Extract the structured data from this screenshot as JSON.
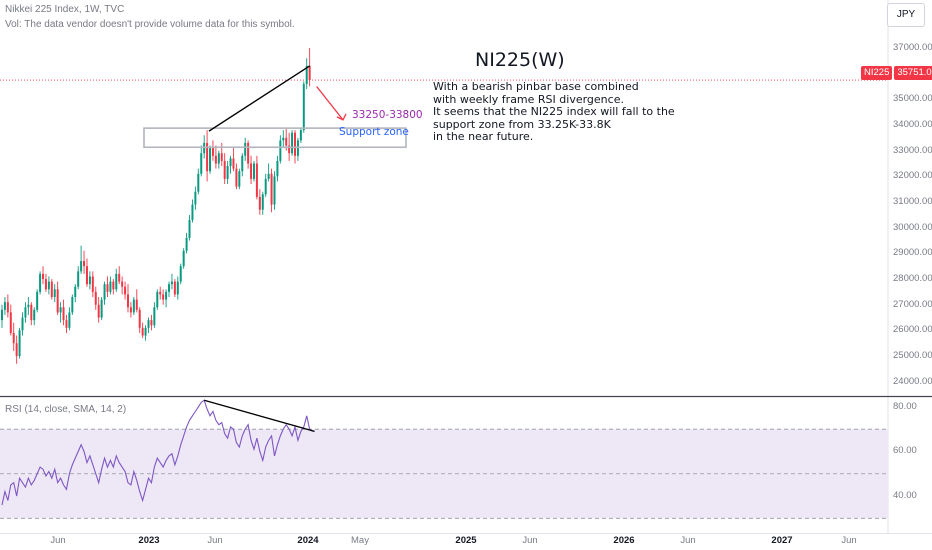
{
  "header": {
    "symbol_line": "Nikkei 225 Index, 1W, TVC",
    "volume_note": "Vol: The data vendor doesn't provide volume data for this symbol."
  },
  "currency_button": "JPY",
  "price_tag": {
    "symbol": "NI225",
    "price": "35751.00",
    "color": "#f23645"
  },
  "annotations": {
    "headline": "NI225(W)",
    "note_lines": [
      "With a bearish pinbar base combined",
      "with weekly frame RSI divergence.",
      "It seems that the NI225 index will fall to the",
      "support zone from 33.25K-33.8K",
      "in the near future."
    ],
    "support_label": "Support zone",
    "target_label": "33250-33800",
    "support_zone": [
      33250,
      33800
    ],
    "projected_target": 33800
  },
  "colors": {
    "up": "#089981",
    "down": "#f23645",
    "rsi_line": "#7e57c2",
    "rsi_band": "#ede7f6",
    "support_zone_border": "#b2b5be",
    "support_label": "#2962ff",
    "target_label": "#9c27b0",
    "trendline": "#000000",
    "arrow": "#f23645"
  },
  "chart_data": [
    {
      "type": "candlestick",
      "title": "Nikkei 225 Index, 1W, TVC",
      "y_axis_labels": [
        "37000.00",
        "36000.00",
        "35000.00",
        "34000.00",
        "33000.00",
        "32000.00",
        "31000.00",
        "30000.00",
        "29000.00",
        "28000.00",
        "27000.00",
        "26000.00",
        "25000.00",
        "24000.00"
      ],
      "x_axis_labels": [
        "Jun",
        "2023",
        "Jun",
        "2024",
        "May",
        "2025",
        "Jun",
        "2026",
        "Jun",
        "2027",
        "Jun"
      ],
      "x_axis_bold": [
        "2023",
        "2024",
        "2025",
        "2026",
        "2027"
      ],
      "x_axis_positions": [
        "2022-06",
        "2023-01",
        "2023-06",
        "2024-01",
        "2024-05",
        "2025-01",
        "2025-06",
        "2026-01",
        "2026-06",
        "2027-01",
        "2027-06"
      ],
      "ylim": [
        23600,
        37700
      ],
      "last_price": 35751,
      "candles": [
        [
          26400,
          27000,
          26100,
          26800
        ],
        [
          26800,
          27300,
          26600,
          27100
        ],
        [
          27100,
          27400,
          26500,
          26700
        ],
        [
          26700,
          27000,
          25800,
          25900
        ],
        [
          25900,
          26300,
          25200,
          25500
        ],
        [
          25500,
          25800,
          24700,
          25000
        ],
        [
          25000,
          26100,
          24900,
          26000
        ],
        [
          26000,
          26700,
          25800,
          26500
        ],
        [
          26500,
          27100,
          26300,
          26900
        ],
        [
          26900,
          27300,
          26600,
          27000
        ],
        [
          27000,
          27100,
          26200,
          26400
        ],
        [
          26400,
          26900,
          26200,
          26800
        ],
        [
          26800,
          27600,
          26700,
          27500
        ],
        [
          27500,
          28300,
          27400,
          28200
        ],
        [
          28200,
          28500,
          27800,
          28000
        ],
        [
          28000,
          28200,
          27500,
          27600
        ],
        [
          27600,
          28100,
          27400,
          27900
        ],
        [
          27900,
          28000,
          27200,
          27300
        ],
        [
          27300,
          27800,
          27100,
          27600
        ],
        [
          27600,
          27900,
          26600,
          26700
        ],
        [
          26700,
          27100,
          26300,
          26900
        ],
        [
          26900,
          27200,
          26200,
          26400
        ],
        [
          26400,
          26600,
          25900,
          26100
        ],
        [
          26100,
          26900,
          26000,
          26700
        ],
        [
          26700,
          27400,
          26600,
          27300
        ],
        [
          27300,
          27800,
          27100,
          27700
        ],
        [
          27700,
          28500,
          27600,
          28300
        ],
        [
          28300,
          29300,
          28200,
          28700
        ],
        [
          28700,
          29100,
          28200,
          28500
        ],
        [
          28500,
          28800,
          27700,
          27800
        ],
        [
          27800,
          28300,
          27600,
          28100
        ],
        [
          28100,
          28300,
          27300,
          27500
        ],
        [
          27500,
          27700,
          26800,
          27000
        ],
        [
          27000,
          27300,
          26300,
          26500
        ],
        [
          26500,
          27300,
          26400,
          27200
        ],
        [
          27200,
          27900,
          27000,
          27800
        ],
        [
          27800,
          28100,
          27300,
          27500
        ],
        [
          27500,
          28100,
          27400,
          27900
        ],
        [
          27900,
          28000,
          27400,
          27600
        ],
        [
          27600,
          28400,
          27500,
          28200
        ],
        [
          28200,
          28500,
          27800,
          27900
        ],
        [
          27900,
          28100,
          27400,
          27700
        ],
        [
          27700,
          27900,
          27200,
          27400
        ],
        [
          27400,
          27800,
          26700,
          26900
        ],
        [
          26900,
          27100,
          26500,
          26700
        ],
        [
          26700,
          27300,
          26600,
          27200
        ],
        [
          27200,
          27600,
          26700,
          26800
        ],
        [
          26800,
          26900,
          25900,
          26100
        ],
        [
          26100,
          26300,
          25700,
          25800
        ],
        [
          25800,
          26200,
          25600,
          26100
        ],
        [
          26100,
          26500,
          25900,
          26400
        ],
        [
          26400,
          26600,
          26000,
          26200
        ],
        [
          26200,
          27100,
          26100,
          26900
        ],
        [
          26900,
          27600,
          26800,
          27500
        ],
        [
          27500,
          27700,
          27200,
          27400
        ],
        [
          27400,
          27600,
          27000,
          27200
        ],
        [
          27200,
          27600,
          26900,
          27500
        ],
        [
          27500,
          27900,
          27300,
          27800
        ],
        [
          27800,
          28200,
          27600,
          27900
        ],
        [
          27900,
          28000,
          27300,
          27400
        ],
        [
          27400,
          28100,
          27200,
          27900
        ],
        [
          27900,
          28600,
          27800,
          28500
        ],
        [
          28500,
          29200,
          28400,
          29100
        ],
        [
          29100,
          29800,
          29000,
          29600
        ],
        [
          29600,
          30500,
          29500,
          30300
        ],
        [
          30300,
          31100,
          30200,
          30900
        ],
        [
          30900,
          31600,
          30700,
          31400
        ],
        [
          31400,
          32300,
          31300,
          32100
        ],
        [
          32100,
          33200,
          32000,
          32900
        ],
        [
          32900,
          33600,
          32700,
          33300
        ],
        [
          33300,
          33800,
          31800,
          32200
        ],
        [
          32200,
          33200,
          32100,
          33100
        ],
        [
          33100,
          33400,
          32600,
          32800
        ],
        [
          32800,
          33200,
          32300,
          32500
        ],
        [
          32500,
          33000,
          32300,
          32900
        ],
        [
          32900,
          33300,
          32400,
          32600
        ],
        [
          32600,
          32900,
          31700,
          31900
        ],
        [
          31900,
          32600,
          31700,
          32400
        ],
        [
          32400,
          32800,
          32100,
          32700
        ],
        [
          32700,
          33100,
          32200,
          32300
        ],
        [
          32300,
          32500,
          31500,
          31600
        ],
        [
          31600,
          32300,
          31500,
          32200
        ],
        [
          32200,
          32900,
          32000,
          32800
        ],
        [
          32800,
          33500,
          32600,
          33300
        ],
        [
          33300,
          33400,
          32300,
          32500
        ],
        [
          32500,
          32800,
          31700,
          31900
        ],
        [
          31900,
          32600,
          31800,
          32500
        ],
        [
          32500,
          32800,
          31100,
          31200
        ],
        [
          31200,
          31500,
          30500,
          30700
        ],
        [
          30700,
          31400,
          30500,
          31300
        ],
        [
          31300,
          32100,
          31200,
          31900
        ],
        [
          31900,
          32500,
          31800,
          32100
        ],
        [
          32100,
          32300,
          30600,
          30900
        ],
        [
          30900,
          32200,
          30700,
          32000
        ],
        [
          32000,
          32800,
          31800,
          32600
        ],
        [
          32600,
          33600,
          32500,
          33400
        ],
        [
          33400,
          33800,
          33100,
          33500
        ],
        [
          33500,
          33900,
          33000,
          33200
        ],
        [
          33200,
          33700,
          32600,
          32900
        ],
        [
          32900,
          33800,
          32800,
          33700
        ],
        [
          33700,
          33800,
          32500,
          32800
        ],
        [
          32800,
          33500,
          32600,
          33400
        ],
        [
          33400,
          33900,
          33300,
          33800
        ],
        [
          33800,
          35700,
          33700,
          35600
        ],
        [
          35600,
          36600,
          35400,
          36300
        ],
        [
          36300,
          37000,
          35500,
          35751
        ]
      ]
    },
    {
      "type": "line",
      "title": "RSI (14, close, SMA, 14, 2)",
      "y_axis_labels": [
        "80.00",
        "60.00",
        "40.00"
      ],
      "ylim": [
        27,
        84
      ],
      "band": [
        30,
        70
      ],
      "midline": 50,
      "values": [
        36,
        42,
        38,
        45,
        46,
        40,
        48,
        46,
        44,
        48,
        45,
        47,
        50,
        53,
        52,
        49,
        51,
        48,
        52,
        46,
        48,
        45,
        43,
        50,
        54,
        57,
        60,
        63,
        60,
        55,
        58,
        54,
        50,
        46,
        52,
        57,
        53,
        56,
        53,
        58,
        55,
        53,
        51,
        46,
        45,
        51,
        47,
        42,
        38,
        43,
        48,
        46,
        53,
        57,
        55,
        53,
        56,
        58,
        59,
        54,
        58,
        63,
        67,
        71,
        74,
        76,
        78,
        80,
        82,
        83,
        79,
        76,
        78,
        74,
        72,
        73,
        68,
        66,
        71,
        70,
        64,
        62,
        67,
        70,
        72,
        65,
        61,
        66,
        60,
        56,
        62,
        65,
        67,
        58,
        63,
        67,
        70,
        72,
        70,
        67,
        71,
        65,
        69,
        71,
        76,
        70,
        69
      ]
    }
  ]
}
